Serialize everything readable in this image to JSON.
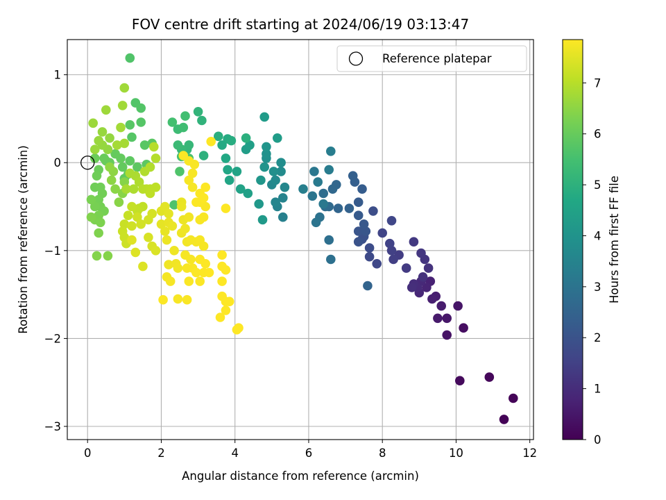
{
  "chart_data": {
    "type": "scatter",
    "title": "FOV centre drift starting at 2024/06/19 03:13:47",
    "xlabel": "Angular distance from reference (arcmin)",
    "ylabel": "Rotation from reference (arcmin)",
    "xlim": [
      -0.55,
      12.1
    ],
    "ylim": [
      -3.15,
      1.4
    ],
    "xticks": [
      0,
      2,
      4,
      6,
      8,
      10,
      12
    ],
    "yticks": [
      -3,
      -2,
      -1,
      0,
      1
    ],
    "grid": true,
    "colormap": "viridis",
    "colorbar": {
      "label": "Hours from first FF file",
      "range": [
        0,
        7.85
      ],
      "ticks": [
        0,
        1,
        2,
        3,
        4,
        5,
        6,
        7
      ]
    },
    "legend": {
      "placement": "top-right",
      "entries": [
        "Reference platepar"
      ]
    },
    "reference": {
      "x": 0,
      "y": 0,
      "marker": "open-circle"
    },
    "points": [
      [
        11.3,
        -2.92,
        0.05
      ],
      [
        11.55,
        -2.68,
        0.1
      ],
      [
        10.9,
        -2.44,
        0.15
      ],
      [
        10.1,
        -2.48,
        0.2
      ],
      [
        10.2,
        -1.88,
        0.3
      ],
      [
        9.75,
        -1.96,
        0.4
      ],
      [
        10.05,
        -1.63,
        0.45
      ],
      [
        9.75,
        -1.77,
        0.5
      ],
      [
        9.5,
        -1.77,
        0.55
      ],
      [
        9.6,
        -1.63,
        0.6
      ],
      [
        9.45,
        -1.52,
        0.65
      ],
      [
        9.35,
        -1.55,
        0.7
      ],
      [
        9.3,
        -1.35,
        0.75
      ],
      [
        9.2,
        -1.42,
        0.8
      ],
      [
        9.0,
        -1.48,
        0.85
      ],
      [
        9.05,
        -1.35,
        0.9
      ],
      [
        8.95,
        -1.42,
        0.95
      ],
      [
        8.85,
        -1.38,
        1.0
      ],
      [
        8.8,
        -1.42,
        1.05
      ],
      [
        9.1,
        -1.3,
        1.1
      ],
      [
        9.25,
        -1.2,
        1.15
      ],
      [
        9.15,
        -1.1,
        1.2
      ],
      [
        9.05,
        -1.03,
        1.25
      ],
      [
        8.85,
        -0.9,
        1.3
      ],
      [
        8.65,
        -1.2,
        1.35
      ],
      [
        8.45,
        -1.05,
        1.4
      ],
      [
        8.3,
        -1.1,
        1.45
      ],
      [
        8.25,
        -1.0,
        1.5
      ],
      [
        8.2,
        -0.92,
        1.55
      ],
      [
        8.0,
        -0.8,
        1.6
      ],
      [
        8.25,
        -0.66,
        1.65
      ],
      [
        7.85,
        -1.15,
        1.7
      ],
      [
        7.65,
        -1.07,
        1.75
      ],
      [
        7.65,
        -0.97,
        1.8
      ],
      [
        7.75,
        -0.55,
        1.85
      ],
      [
        7.45,
        -0.87,
        1.9
      ],
      [
        7.5,
        -0.84,
        1.95
      ],
      [
        7.35,
        -0.9,
        2.0
      ],
      [
        7.35,
        -0.78,
        2.05
      ],
      [
        7.55,
        -0.78,
        2.1
      ],
      [
        7.5,
        -0.7,
        2.15
      ],
      [
        7.35,
        -0.6,
        2.2
      ],
      [
        7.35,
        -0.45,
        2.25
      ],
      [
        7.45,
        -0.3,
        2.3
      ],
      [
        7.25,
        -0.22,
        2.35
      ],
      [
        7.2,
        -0.15,
        2.4
      ],
      [
        7.1,
        -0.52,
        2.45
      ],
      [
        7.6,
        -1.4,
        2.5
      ],
      [
        6.8,
        -0.52,
        2.55
      ],
      [
        6.75,
        -0.25,
        2.6
      ],
      [
        6.65,
        -0.3,
        2.65
      ],
      [
        6.55,
        -0.5,
        2.7
      ],
      [
        6.45,
        -0.5,
        2.75
      ],
      [
        6.4,
        -0.35,
        2.8
      ],
      [
        6.55,
        -0.88,
        2.85
      ],
      [
        6.6,
        -1.1,
        2.9
      ],
      [
        6.3,
        -0.62,
        2.95
      ],
      [
        6.2,
        -0.68,
        3.0
      ],
      [
        6.1,
        -0.38,
        3.05
      ],
      [
        6.15,
        -0.1,
        3.1
      ],
      [
        6.4,
        -0.47,
        3.15
      ],
      [
        6.25,
        -0.22,
        3.2
      ],
      [
        6.55,
        -0.08,
        3.25
      ],
      [
        6.6,
        0.13,
        3.3
      ],
      [
        5.85,
        -0.3,
        3.35
      ],
      [
        5.3,
        -0.62,
        3.4
      ],
      [
        5.15,
        -0.5,
        3.45
      ],
      [
        5.3,
        -0.4,
        3.5
      ],
      [
        5.1,
        -0.45,
        3.55
      ],
      [
        5.35,
        -0.28,
        3.6
      ],
      [
        5.0,
        -0.25,
        3.65
      ],
      [
        5.1,
        -0.2,
        3.7
      ],
      [
        5.25,
        -0.1,
        3.75
      ],
      [
        5.25,
        0.0,
        3.8
      ],
      [
        5.05,
        -0.1,
        3.85
      ],
      [
        4.85,
        0.05,
        3.9
      ],
      [
        4.85,
        0.1,
        3.95
      ],
      [
        4.8,
        -0.05,
        4.0
      ],
      [
        4.85,
        0.18,
        4.05
      ],
      [
        4.7,
        -0.2,
        4.1
      ],
      [
        4.65,
        -0.47,
        4.15
      ],
      [
        4.75,
        -0.65,
        4.2
      ],
      [
        4.8,
        0.52,
        4.25
      ],
      [
        5.15,
        0.28,
        4.3
      ],
      [
        4.3,
        0.15,
        4.35
      ],
      [
        4.4,
        0.2,
        4.4
      ],
      [
        4.35,
        -0.35,
        4.45
      ],
      [
        4.15,
        -0.3,
        4.5
      ],
      [
        4.05,
        -0.1,
        4.55
      ],
      [
        3.85,
        -0.2,
        4.6
      ],
      [
        3.8,
        -0.08,
        4.65
      ],
      [
        3.75,
        0.05,
        4.7
      ],
      [
        3.65,
        0.2,
        4.75
      ],
      [
        3.8,
        0.27,
        4.8
      ],
      [
        3.9,
        0.25,
        4.85
      ],
      [
        3.55,
        0.3,
        4.9
      ],
      [
        4.3,
        0.28,
        4.95
      ],
      [
        3.15,
        0.08,
        5.0
      ],
      [
        3.1,
        0.48,
        5.05
      ],
      [
        3.0,
        0.58,
        5.1
      ],
      [
        2.7,
        0.15,
        5.15
      ],
      [
        2.75,
        0.2,
        5.2
      ],
      [
        2.55,
        0.15,
        5.25
      ],
      [
        2.45,
        0.2,
        5.3
      ],
      [
        2.45,
        0.38,
        5.35
      ],
      [
        2.6,
        0.4,
        5.4
      ],
      [
        2.65,
        0.53,
        5.45
      ],
      [
        2.3,
        0.46,
        5.5
      ],
      [
        2.55,
        0.07,
        5.55
      ],
      [
        2.75,
        0.05,
        5.6
      ],
      [
        2.35,
        -0.48,
        5.62
      ],
      [
        2.5,
        -0.1,
        5.65
      ],
      [
        1.15,
        1.19,
        5.68
      ],
      [
        1.3,
        0.68,
        5.7
      ],
      [
        1.45,
        0.62,
        5.72
      ],
      [
        1.45,
        0.46,
        5.74
      ],
      [
        1.2,
        0.29,
        5.76
      ],
      [
        1.15,
        0.43,
        5.78
      ],
      [
        1.55,
        0.2,
        5.8
      ],
      [
        1.75,
        0.22,
        5.82
      ],
      [
        1.6,
        -0.02,
        5.84
      ],
      [
        1.35,
        -0.05,
        5.86
      ],
      [
        1.15,
        0.02,
        5.88
      ],
      [
        1.1,
        -0.13,
        5.9
      ],
      [
        1.0,
        -0.18,
        5.92
      ],
      [
        0.95,
        -0.05,
        5.94
      ],
      [
        0.9,
        0.05,
        5.96
      ],
      [
        0.75,
        0.1,
        5.98
      ],
      [
        0.6,
        0.0,
        6.0
      ],
      [
        0.5,
        0.02,
        6.02
      ],
      [
        0.45,
        0.05,
        6.04
      ],
      [
        0.3,
        -0.08,
        6.06
      ],
      [
        0.2,
        0.05,
        6.08
      ],
      [
        0.25,
        -0.15,
        6.1
      ],
      [
        0.2,
        -0.28,
        6.12
      ],
      [
        0.35,
        -0.28,
        6.14
      ],
      [
        0.4,
        -0.35,
        6.16
      ],
      [
        0.3,
        -0.42,
        6.18
      ],
      [
        0.35,
        -0.5,
        6.2
      ],
      [
        0.45,
        -0.55,
        6.22
      ],
      [
        0.2,
        -0.5,
        6.24
      ],
      [
        0.1,
        -0.42,
        6.26
      ],
      [
        0.3,
        -0.6,
        6.28
      ],
      [
        0.2,
        -0.65,
        6.3
      ],
      [
        0.35,
        -0.68,
        6.32
      ],
      [
        0.3,
        -0.8,
        6.34
      ],
      [
        0.1,
        -0.62,
        6.36
      ],
      [
        0.25,
        -1.06,
        6.38
      ],
      [
        0.55,
        -1.06,
        6.4
      ],
      [
        1.0,
        -0.22,
        6.42
      ],
      [
        0.95,
        -0.35,
        6.44
      ],
      [
        0.85,
        -0.45,
        6.46
      ],
      [
        0.75,
        -0.3,
        6.48
      ],
      [
        0.65,
        -0.2,
        6.5
      ],
      [
        0.7,
        -0.1,
        6.52
      ],
      [
        0.6,
        -0.05,
        6.54
      ],
      [
        0.55,
        0.15,
        6.56
      ],
      [
        0.6,
        0.28,
        6.58
      ],
      [
        0.4,
        0.2,
        6.6
      ],
      [
        0.4,
        0.35,
        6.62
      ],
      [
        0.3,
        0.25,
        6.64
      ],
      [
        0.2,
        0.15,
        6.66
      ],
      [
        0.15,
        0.45,
        6.68
      ],
      [
        0.5,
        0.6,
        6.7
      ],
      [
        1.0,
        0.85,
        6.72
      ],
      [
        0.95,
        0.65,
        6.74
      ],
      [
        0.9,
        0.4,
        6.76
      ],
      [
        0.8,
        0.2,
        6.78
      ],
      [
        1.0,
        0.22,
        6.8
      ],
      [
        1.05,
        -0.3,
        6.82
      ],
      [
        1.15,
        -0.12,
        6.84
      ],
      [
        1.3,
        -0.15,
        6.86
      ],
      [
        1.25,
        -0.3,
        6.88
      ],
      [
        1.4,
        -0.22,
        6.9
      ],
      [
        1.55,
        -0.1,
        6.92
      ],
      [
        1.7,
        -0.05,
        6.94
      ],
      [
        1.85,
        0.05,
        6.96
      ],
      [
        1.8,
        0.18,
        6.98
      ],
      [
        1.5,
        -0.3,
        7.0
      ],
      [
        1.6,
        -0.3,
        7.02
      ],
      [
        1.7,
        -0.3,
        7.04
      ],
      [
        1.85,
        -0.28,
        7.06
      ],
      [
        1.7,
        -0.35,
        7.08
      ],
      [
        1.5,
        -0.5,
        7.1
      ],
      [
        1.4,
        -0.52,
        7.12
      ],
      [
        1.35,
        -0.55,
        7.14
      ],
      [
        1.2,
        -0.5,
        7.16
      ],
      [
        1.1,
        -0.6,
        7.18
      ],
      [
        1.0,
        -0.7,
        7.2
      ],
      [
        0.95,
        -0.78,
        7.22
      ],
      [
        1.0,
        -0.85,
        7.24
      ],
      [
        1.05,
        -0.92,
        7.26
      ],
      [
        1.2,
        -0.72,
        7.28
      ],
      [
        1.35,
        -0.62,
        7.3
      ],
      [
        1.45,
        -0.7,
        7.32
      ],
      [
        1.65,
        -0.65,
        7.34
      ],
      [
        1.75,
        -0.58,
        7.36
      ],
      [
        1.65,
        -0.85,
        7.38
      ],
      [
        1.75,
        -0.95,
        7.4
      ],
      [
        1.85,
        -1.0,
        7.42
      ],
      [
        1.5,
        -1.18,
        7.44
      ],
      [
        1.3,
        -1.02,
        7.46
      ],
      [
        1.2,
        -0.88,
        7.48
      ],
      [
        2.0,
        -0.55,
        7.5
      ],
      [
        2.1,
        -0.5,
        7.52
      ],
      [
        2.2,
        -0.58,
        7.54
      ],
      [
        2.0,
        -0.7,
        7.56
      ],
      [
        2.1,
        -0.78,
        7.58
      ],
      [
        2.2,
        -0.68,
        7.6
      ],
      [
        2.3,
        -0.72,
        7.62
      ],
      [
        2.15,
        -0.88,
        7.64
      ],
      [
        2.35,
        -1.0,
        7.66
      ],
      [
        2.2,
        -1.16,
        7.68
      ],
      [
        2.4,
        -1.15,
        7.7
      ],
      [
        2.45,
        -1.2,
        7.72
      ],
      [
        2.15,
        -1.3,
        7.74
      ],
      [
        2.25,
        -1.35,
        7.76
      ],
      [
        2.45,
        -1.55,
        7.78
      ],
      [
        2.7,
        -1.56,
        7.8
      ],
      [
        2.05,
        -1.56,
        7.82
      ],
      [
        2.55,
        -0.45,
        7.6
      ],
      [
        2.55,
        -0.5,
        7.62
      ],
      [
        2.6,
        -0.65,
        7.64
      ],
      [
        2.55,
        -0.8,
        7.66
      ],
      [
        2.65,
        -0.75,
        7.68
      ],
      [
        2.75,
        -0.62,
        7.7
      ],
      [
        2.7,
        -0.9,
        7.72
      ],
      [
        2.8,
        -0.88,
        7.74
      ],
      [
        2.65,
        -1.05,
        7.76
      ],
      [
        2.8,
        -1.1,
        7.78
      ],
      [
        2.7,
        -1.2,
        7.79
      ],
      [
        2.85,
        -1.2,
        7.8
      ],
      [
        2.75,
        -1.35,
        7.81
      ],
      [
        2.95,
        -1.25,
        7.82
      ],
      [
        3.05,
        -1.35,
        7.83
      ],
      [
        3.15,
        -1.25,
        7.84
      ],
      [
        3.05,
        -1.1,
        7.84
      ],
      [
        3.2,
        -1.15,
        7.84
      ],
      [
        3.3,
        -1.25,
        7.85
      ],
      [
        2.95,
        -0.9,
        7.75
      ],
      [
        3.05,
        -0.88,
        7.76
      ],
      [
        3.15,
        -0.95,
        7.77
      ],
      [
        3.05,
        -0.65,
        7.78
      ],
      [
        3.15,
        -0.62,
        7.79
      ],
      [
        3.2,
        -0.5,
        7.8
      ],
      [
        3.05,
        -0.45,
        7.81
      ],
      [
        2.95,
        -0.45,
        7.82
      ],
      [
        3.05,
        -0.35,
        7.83
      ],
      [
        3.15,
        -0.4,
        7.84
      ],
      [
        3.2,
        -0.28,
        7.85
      ],
      [
        2.85,
        -0.28,
        7.76
      ],
      [
        2.75,
        -0.2,
        7.77
      ],
      [
        2.85,
        -0.12,
        7.78
      ],
      [
        2.9,
        -0.02,
        7.79
      ],
      [
        2.75,
        0.02,
        7.8
      ],
      [
        2.6,
        0.08,
        7.81
      ],
      [
        3.35,
        0.24,
        7.85
      ],
      [
        3.75,
        -0.52,
        7.85
      ],
      [
        3.65,
        -1.05,
        7.85
      ],
      [
        3.65,
        -1.18,
        7.85
      ],
      [
        3.75,
        -1.22,
        7.85
      ],
      [
        3.65,
        -1.35,
        7.85
      ],
      [
        3.65,
        -1.52,
        7.85
      ],
      [
        3.75,
        -1.58,
        7.85
      ],
      [
        3.85,
        -1.58,
        7.85
      ],
      [
        3.75,
        -1.68,
        7.85
      ],
      [
        3.6,
        -1.76,
        7.85
      ],
      [
        4.1,
        -1.88,
        7.85
      ],
      [
        4.05,
        -1.9,
        7.85
      ]
    ]
  }
}
